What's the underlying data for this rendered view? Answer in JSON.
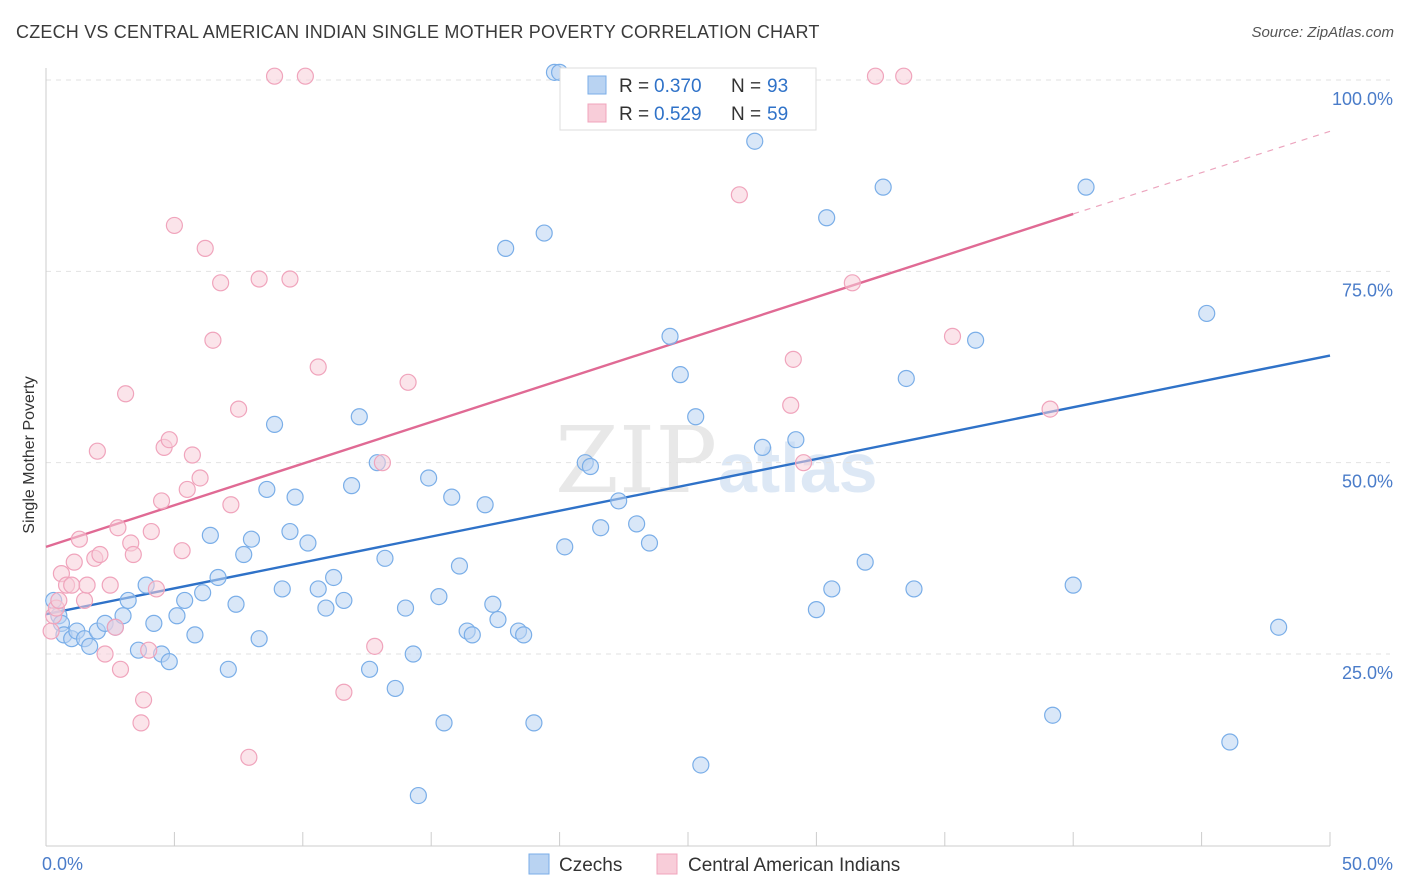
{
  "title": "CZECH VS CENTRAL AMERICAN INDIAN SINGLE MOTHER POVERTY CORRELATION CHART",
  "source": "Source: ZipAtlas.com",
  "watermark": {
    "zip": "ZIP",
    "atlas": "atlas"
  },
  "chart_data": {
    "type": "scatter",
    "title": "CZECH VS CENTRAL AMERICAN INDIAN SINGLE MOTHER POVERTY CORRELATION CHART",
    "xlabel": "",
    "ylabel": "Single Mother Poverty",
    "xlim": [
      0,
      50
    ],
    "ylim": [
      0,
      102
    ],
    "x_tick_labels": [
      {
        "value": 0,
        "label": "0.0%"
      },
      {
        "value": 50,
        "label": "50.0%"
      }
    ],
    "y_tick_labels": [
      {
        "value": 25,
        "label": "25.0%"
      },
      {
        "value": 50,
        "label": "50.0%"
      },
      {
        "value": 75,
        "label": "75.0%"
      },
      {
        "value": 100,
        "label": "100.0%"
      }
    ],
    "grid": true,
    "legend_position": "top-center",
    "series": [
      {
        "name": "Czechs",
        "color": "#7aaee8",
        "fill": "#b9d3f2",
        "line_color": "#2f72c8",
        "r_label": "R =",
        "r_value": "0.370",
        "n_label": "N =",
        "n_value": "93",
        "trend": {
          "x0": 0,
          "y0": 30.2,
          "x1": 50,
          "y1": 64.0
        },
        "points": [
          [
            0.3,
            32
          ],
          [
            0.5,
            30
          ],
          [
            0.6,
            29
          ],
          [
            0.7,
            27.5
          ],
          [
            1.0,
            27
          ],
          [
            1.2,
            28
          ],
          [
            1.5,
            27
          ],
          [
            1.7,
            26
          ],
          [
            2.0,
            28
          ],
          [
            2.3,
            29
          ],
          [
            2.7,
            28.5
          ],
          [
            3.0,
            30
          ],
          [
            3.2,
            32
          ],
          [
            3.6,
            25.5
          ],
          [
            3.9,
            34
          ],
          [
            4.2,
            29
          ],
          [
            4.5,
            25
          ],
          [
            4.8,
            24
          ],
          [
            5.1,
            30
          ],
          [
            5.4,
            32
          ],
          [
            5.8,
            27.5
          ],
          [
            6.1,
            33
          ],
          [
            6.4,
            40.5
          ],
          [
            6.7,
            35
          ],
          [
            7.1,
            23
          ],
          [
            7.4,
            31.5
          ],
          [
            7.7,
            38
          ],
          [
            8.0,
            40
          ],
          [
            8.3,
            27
          ],
          [
            8.6,
            46.5
          ],
          [
            8.9,
            55
          ],
          [
            9.2,
            33.5
          ],
          [
            9.5,
            41
          ],
          [
            9.7,
            45.5
          ],
          [
            10.2,
            39.5
          ],
          [
            10.6,
            33.5
          ],
          [
            10.9,
            31
          ],
          [
            11.2,
            35
          ],
          [
            11.6,
            32
          ],
          [
            11.9,
            47
          ],
          [
            12.2,
            56
          ],
          [
            12.6,
            23
          ],
          [
            12.9,
            50
          ],
          [
            13.2,
            37.5
          ],
          [
            13.6,
            20.5
          ],
          [
            14.0,
            31
          ],
          [
            14.3,
            25
          ],
          [
            14.5,
            6.5
          ],
          [
            14.9,
            48
          ],
          [
            15.3,
            32.5
          ],
          [
            15.5,
            16
          ],
          [
            15.8,
            45.5
          ],
          [
            16.1,
            36.5
          ],
          [
            16.4,
            28
          ],
          [
            16.6,
            27.5
          ],
          [
            17.1,
            44.5
          ],
          [
            17.4,
            31.5
          ],
          [
            17.6,
            29.5
          ],
          [
            17.9,
            78
          ],
          [
            18.4,
            28
          ],
          [
            18.6,
            27.5
          ],
          [
            19.0,
            16
          ],
          [
            19.4,
            80
          ],
          [
            19.8,
            101
          ],
          [
            20.0,
            101
          ],
          [
            20.2,
            39
          ],
          [
            21.0,
            50
          ],
          [
            21.2,
            49.5
          ],
          [
            21.6,
            41.5
          ],
          [
            22.3,
            45
          ],
          [
            23.0,
            42
          ],
          [
            23.5,
            39.5
          ],
          [
            24.3,
            66.5
          ],
          [
            24.7,
            61.5
          ],
          [
            25.3,
            56
          ],
          [
            25.5,
            10.5
          ],
          [
            27.6,
            92
          ],
          [
            27.9,
            52
          ],
          [
            29.2,
            53
          ],
          [
            30.0,
            30.8
          ],
          [
            30.4,
            82
          ],
          [
            30.6,
            33.5
          ],
          [
            31.9,
            37
          ],
          [
            32.6,
            86
          ],
          [
            33.5,
            61
          ],
          [
            33.8,
            33.5
          ],
          [
            36.2,
            66
          ],
          [
            39.2,
            17
          ],
          [
            40.0,
            34
          ],
          [
            40.5,
            86
          ],
          [
            45.2,
            69.5
          ],
          [
            46.1,
            13.5
          ],
          [
            48.0,
            28.5
          ]
        ]
      },
      {
        "name": "Central American Indians",
        "color": "#f0a4bc",
        "fill": "#f8cdd9",
        "line_color": "#e06a94",
        "r_label": "R =",
        "r_value": "0.529",
        "n_label": "N =",
        "n_value": "59",
        "trend": {
          "x0": 0,
          "y0": 39.0,
          "x1": 40,
          "y1": 82.5
        },
        "trend_dashed": {
          "x0": 40,
          "y0": 82.5,
          "x1": 50,
          "y1": 93.3
        },
        "points": [
          [
            0.2,
            28
          ],
          [
            0.3,
            30
          ],
          [
            0.4,
            31
          ],
          [
            0.5,
            32
          ],
          [
            0.6,
            35.5
          ],
          [
            0.8,
            34
          ],
          [
            1.0,
            34
          ],
          [
            1.1,
            37
          ],
          [
            1.3,
            40
          ],
          [
            1.5,
            32
          ],
          [
            1.6,
            34
          ],
          [
            1.9,
            37.5
          ],
          [
            2.0,
            51.5
          ],
          [
            2.1,
            38
          ],
          [
            2.3,
            25
          ],
          [
            2.5,
            34
          ],
          [
            2.7,
            28.5
          ],
          [
            2.8,
            41.5
          ],
          [
            2.9,
            23
          ],
          [
            3.1,
            59
          ],
          [
            3.3,
            39.5
          ],
          [
            3.4,
            38
          ],
          [
            3.7,
            16
          ],
          [
            3.8,
            19
          ],
          [
            4.0,
            25.5
          ],
          [
            4.1,
            41
          ],
          [
            4.3,
            33.5
          ],
          [
            4.5,
            45
          ],
          [
            4.6,
            52
          ],
          [
            4.8,
            53
          ],
          [
            5.0,
            81
          ],
          [
            5.3,
            38.5
          ],
          [
            5.5,
            46.5
          ],
          [
            5.7,
            51
          ],
          [
            6.0,
            48
          ],
          [
            6.2,
            78
          ],
          [
            6.5,
            66
          ],
          [
            6.8,
            73.5
          ],
          [
            7.2,
            44.5
          ],
          [
            7.5,
            57
          ],
          [
            7.9,
            11.5
          ],
          [
            8.3,
            74
          ],
          [
            8.9,
            100.5
          ],
          [
            9.5,
            74
          ],
          [
            10.1,
            100.5
          ],
          [
            10.6,
            62.5
          ],
          [
            11.6,
            20
          ],
          [
            12.8,
            26
          ],
          [
            13.1,
            50
          ],
          [
            14.1,
            60.5
          ],
          [
            27.0,
            85
          ],
          [
            29.0,
            57.5
          ],
          [
            29.1,
            63.5
          ],
          [
            29.5,
            50
          ],
          [
            31.4,
            73.5
          ],
          [
            32.3,
            100.5
          ],
          [
            33.4,
            100.5
          ],
          [
            35.3,
            66.5
          ],
          [
            39.1,
            57
          ]
        ]
      }
    ],
    "legend": [
      {
        "label": "Czechs"
      },
      {
        "label": "Central American Indians"
      }
    ]
  }
}
